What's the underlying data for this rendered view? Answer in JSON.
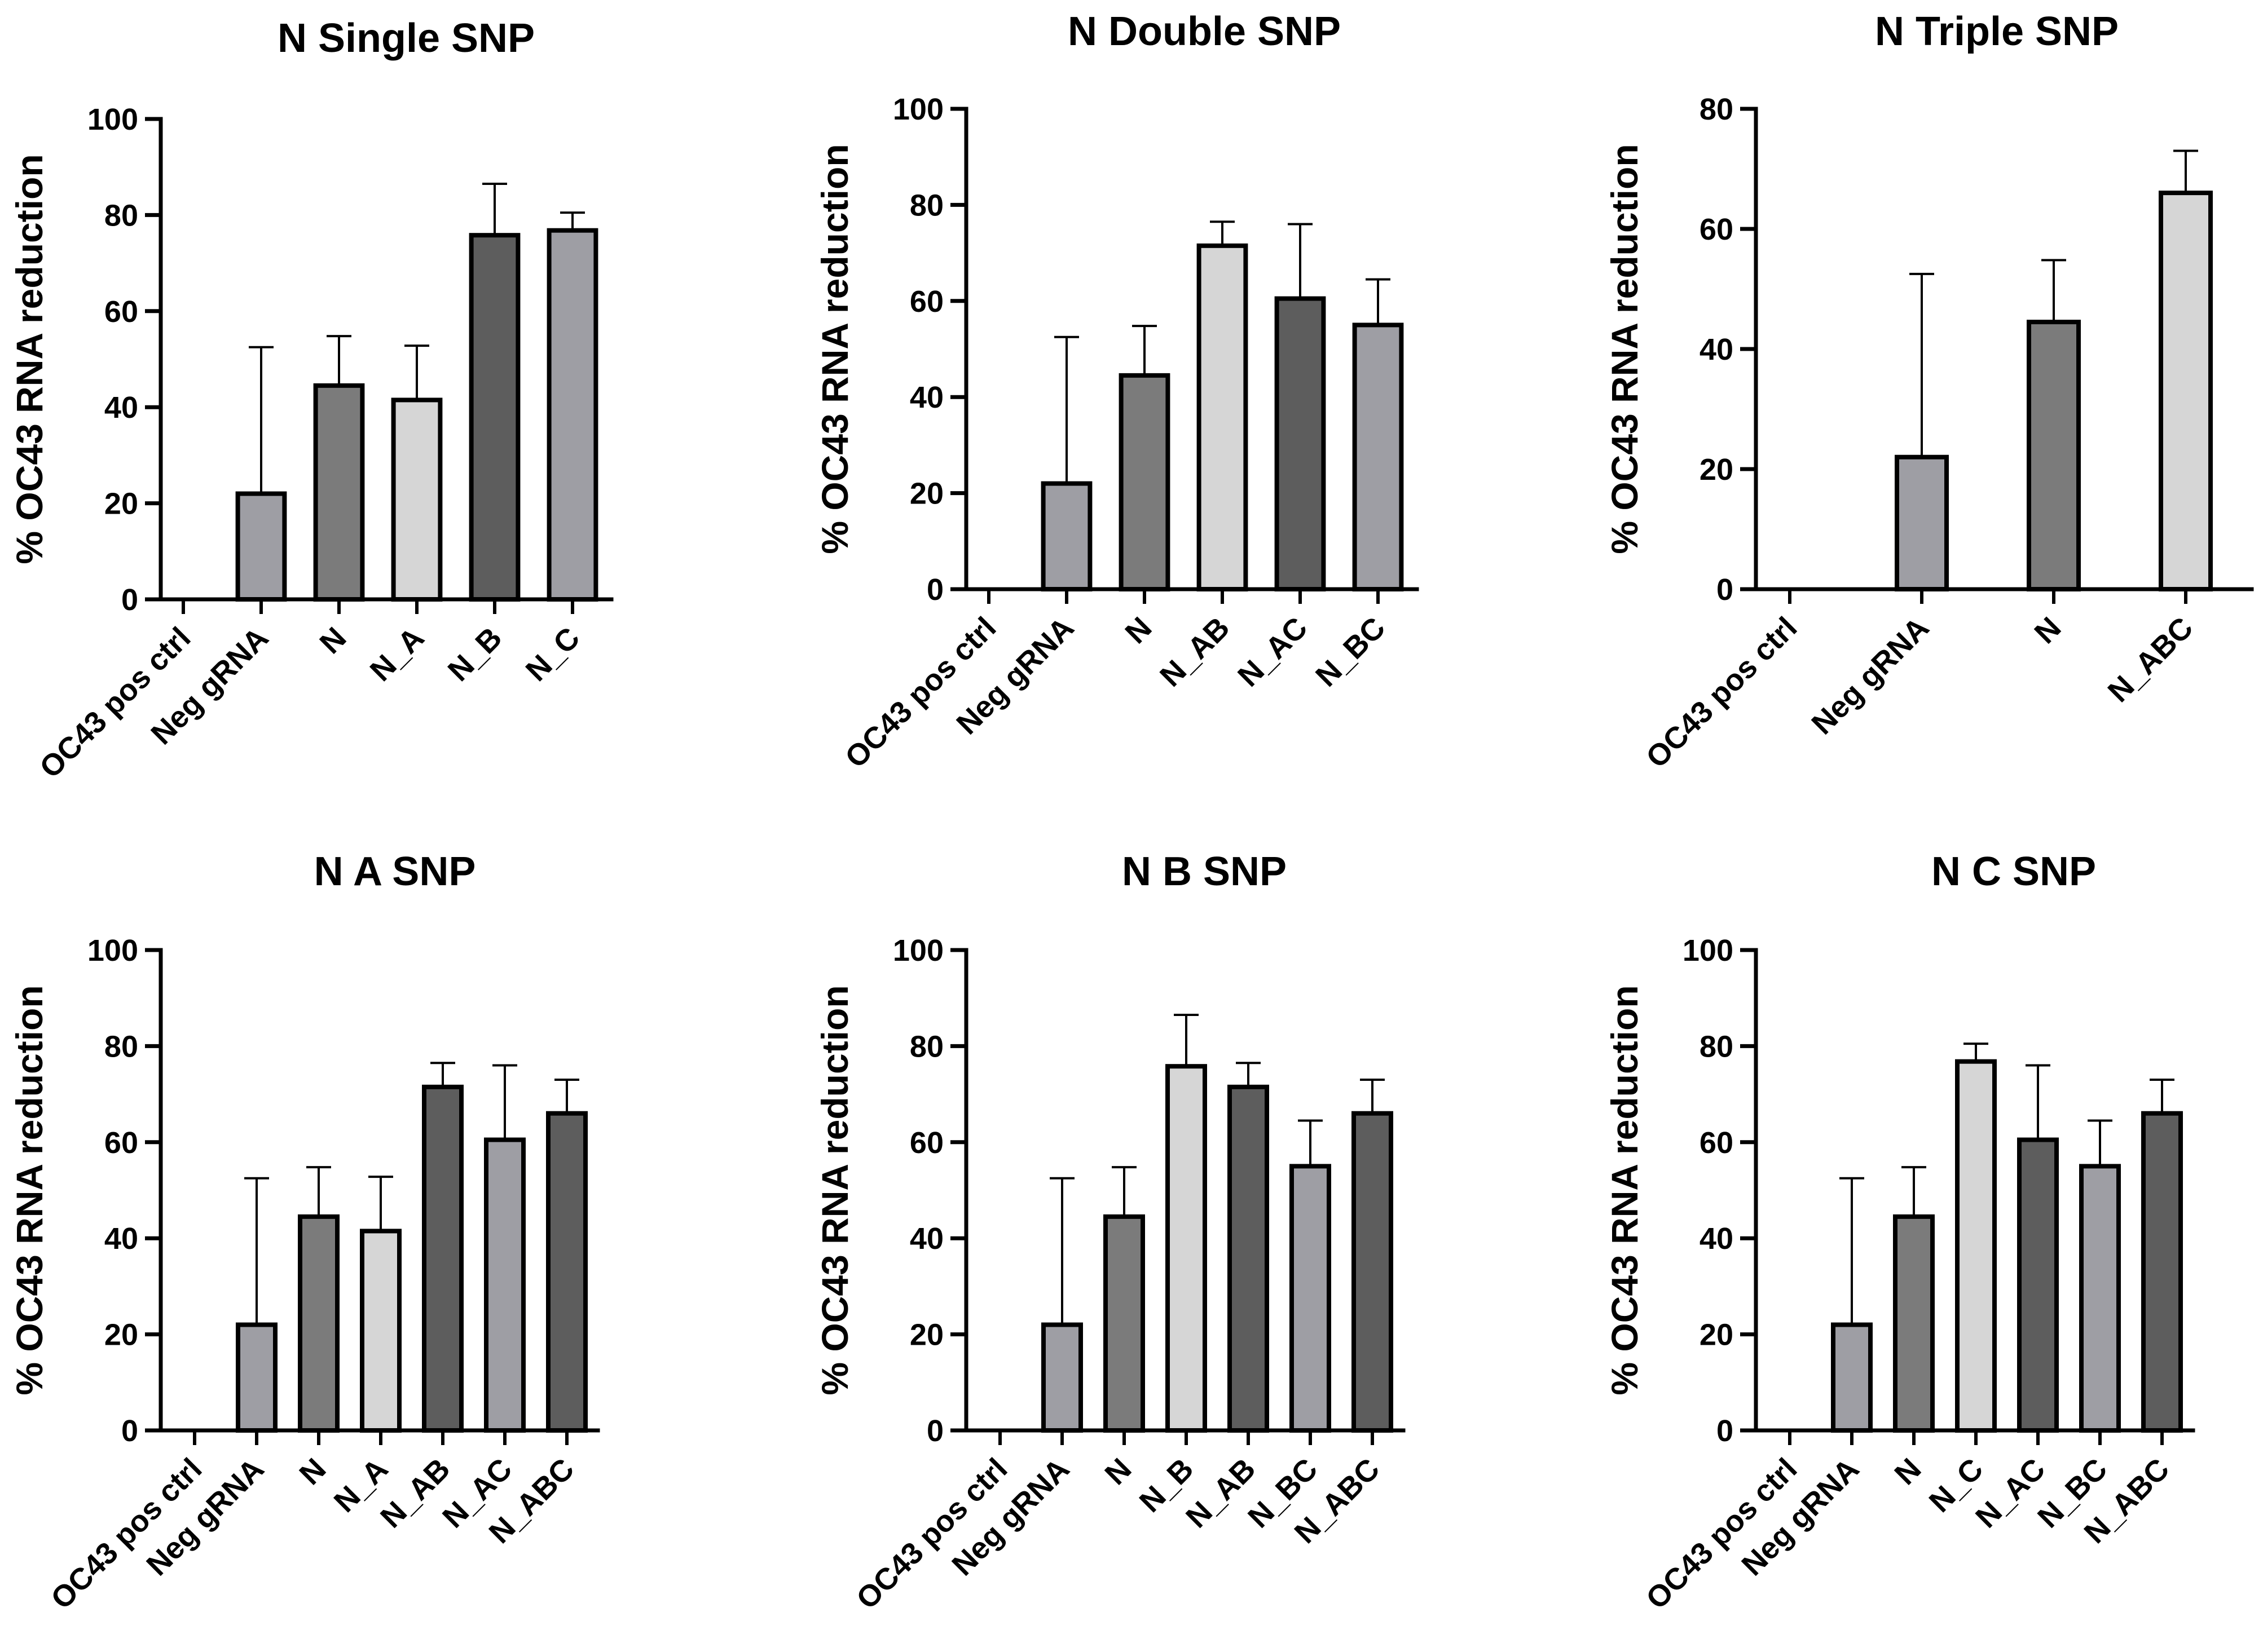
{
  "fill_colors": {
    "light": "#d6d6d6",
    "mid": "#9e9ea4",
    "dark_mid": "#7b7b7b",
    "dark": "#5d5d5d"
  },
  "chart_data": [
    {
      "type": "bar",
      "title": "N Single SNP",
      "ylabel": "% OC43 RNA reduction",
      "ylim": [
        0,
        100
      ],
      "yticks": [
        0,
        20,
        40,
        60,
        80,
        100
      ],
      "categories": [
        "OC43 pos ctrl",
        "Neg gRNA",
        "N",
        "N_A",
        "N_B",
        "N_C"
      ],
      "values": [
        0,
        22,
        44.5,
        41.5,
        75.8,
        76.8
      ],
      "error_upper": [
        0,
        52.5,
        54.8,
        52.8,
        86.5,
        80.5
      ],
      "fills": [
        "none",
        "mid",
        "dark_mid",
        "light",
        "dark",
        "mid"
      ]
    },
    {
      "type": "bar",
      "title": "N Double SNP",
      "ylabel": "% OC43 RNA reduction",
      "ylim": [
        0,
        100
      ],
      "yticks": [
        0,
        20,
        40,
        60,
        80,
        100
      ],
      "categories": [
        "OC43 pos ctrl",
        "Neg gRNA",
        "N",
        "N_AB",
        "N_AC",
        "N_BC"
      ],
      "values": [
        0,
        22,
        44.5,
        71.5,
        60.5,
        55
      ],
      "error_upper": [
        0,
        52.5,
        54.8,
        76.5,
        76,
        64.5
      ],
      "fills": [
        "none",
        "mid",
        "dark_mid",
        "light",
        "dark",
        "mid"
      ]
    },
    {
      "type": "bar",
      "title": "N Triple SNP",
      "ylabel": "% OC43 RNA reduction",
      "ylim": [
        0,
        80
      ],
      "yticks": [
        0,
        20,
        40,
        60,
        80
      ],
      "categories": [
        "OC43 pos ctrl",
        "Neg gRNA",
        "N",
        "N_ABC"
      ],
      "values": [
        0,
        22,
        44.5,
        66
      ],
      "error_upper": [
        0,
        52.5,
        54.8,
        73
      ],
      "fills": [
        "none",
        "mid",
        "dark_mid",
        "light"
      ]
    },
    {
      "type": "bar",
      "title": "N A SNP",
      "ylabel": "% OC43 RNA reduction",
      "ylim": [
        0,
        100
      ],
      "yticks": [
        0,
        20,
        40,
        60,
        80,
        100
      ],
      "categories": [
        "OC43 pos ctrl",
        "Neg gRNA",
        "N",
        "N_A",
        "N_AB",
        "N_AC",
        "N_ABC"
      ],
      "values": [
        0,
        22,
        44.5,
        41.5,
        71.5,
        60.5,
        66
      ],
      "error_upper": [
        0,
        52.5,
        54.8,
        52.8,
        76.5,
        76,
        73
      ],
      "fills": [
        "none",
        "mid",
        "dark_mid",
        "light",
        "dark",
        "mid",
        "dark"
      ]
    },
    {
      "type": "bar",
      "title": "N B SNP",
      "ylabel": "% OC43 RNA reduction",
      "ylim": [
        0,
        100
      ],
      "yticks": [
        0,
        20,
        40,
        60,
        80,
        100
      ],
      "categories": [
        "OC43 pos ctrl",
        "Neg gRNA",
        "N",
        "N_B",
        "N_AB",
        "N_BC",
        "N_ABC"
      ],
      "values": [
        0,
        22,
        44.5,
        75.8,
        71.5,
        55,
        66
      ],
      "error_upper": [
        0,
        52.5,
        54.8,
        86.5,
        76.5,
        64.5,
        73
      ],
      "fills": [
        "none",
        "mid",
        "dark_mid",
        "light",
        "dark",
        "mid",
        "dark"
      ]
    },
    {
      "type": "bar",
      "title": "N C SNP",
      "ylabel": "% OC43 RNA reduction",
      "ylim": [
        0,
        100
      ],
      "yticks": [
        0,
        20,
        40,
        60,
        80,
        100
      ],
      "categories": [
        "OC43 pos ctrl",
        "Neg gRNA",
        "N",
        "N_C",
        "N_AC",
        "N_BC",
        "N_ABC"
      ],
      "values": [
        0,
        22,
        44.5,
        76.8,
        60.5,
        55,
        66
      ],
      "error_upper": [
        0,
        52.5,
        54.8,
        80.5,
        76,
        64.5,
        73
      ],
      "fills": [
        "none",
        "mid",
        "dark_mid",
        "light",
        "dark",
        "mid",
        "dark"
      ]
    }
  ]
}
